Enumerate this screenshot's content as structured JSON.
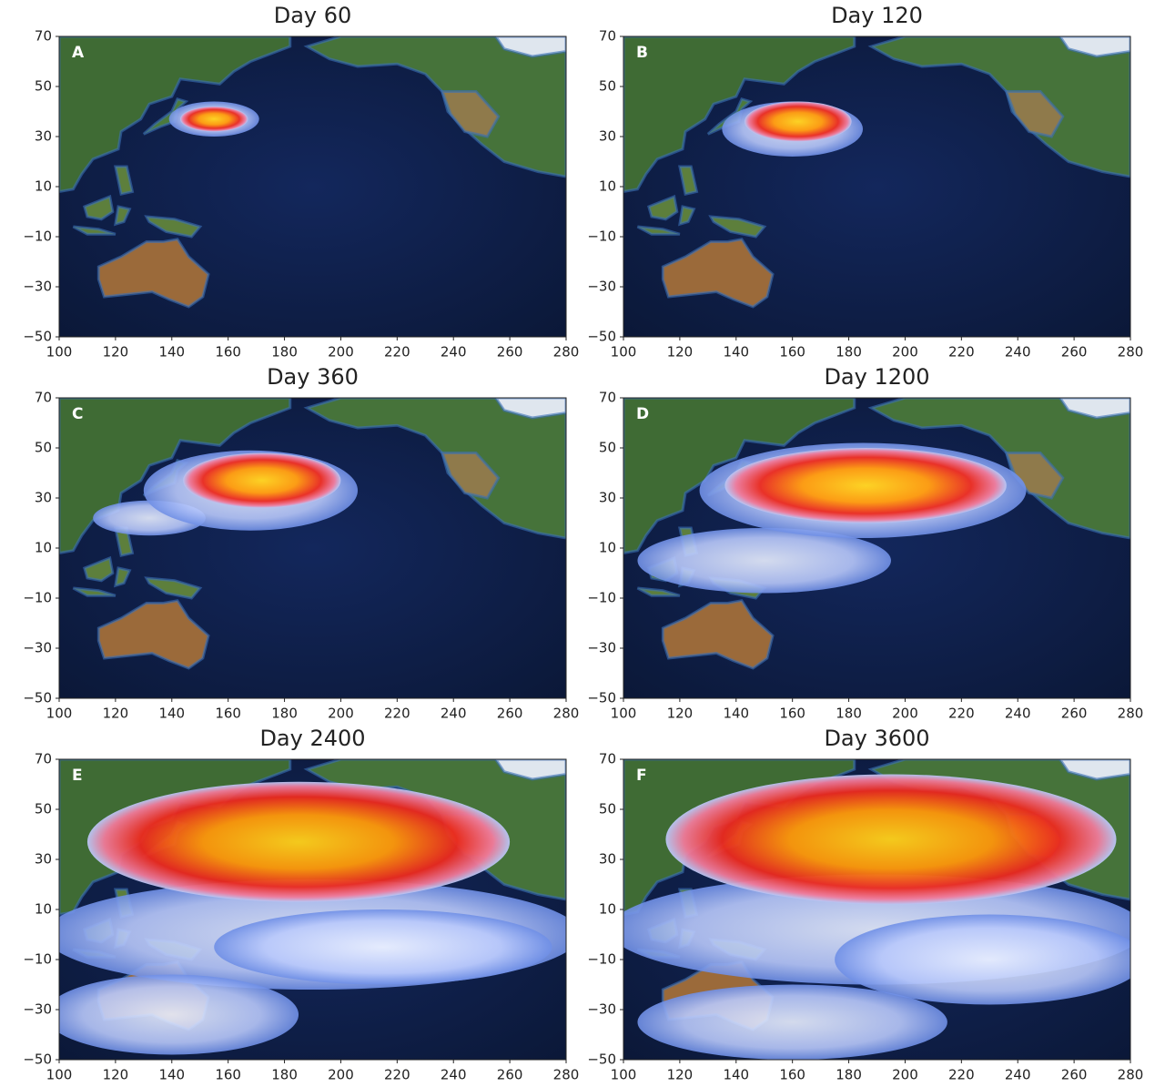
{
  "panels": [
    {
      "letter": "A",
      "title": "Day 60"
    },
    {
      "letter": "B",
      "title": "Day 120"
    },
    {
      "letter": "C",
      "title": "Day 360"
    },
    {
      "letter": "D",
      "title": "Day 1200"
    },
    {
      "letter": "E",
      "title": "Day 2400"
    },
    {
      "letter": "F",
      "title": "Day 3600"
    }
  ],
  "axes": {
    "xlim": [
      100,
      280
    ],
    "ylim": [
      -50,
      70
    ],
    "xticks": [
      100,
      120,
      140,
      160,
      180,
      200,
      220,
      240,
      260,
      280
    ],
    "yticks": [
      {
        "value": -50,
        "label": "−50"
      },
      {
        "value": -30,
        "label": "−30"
      },
      {
        "value": -10,
        "label": "−10"
      },
      10,
      30,
      50,
      70
    ]
  }
}
